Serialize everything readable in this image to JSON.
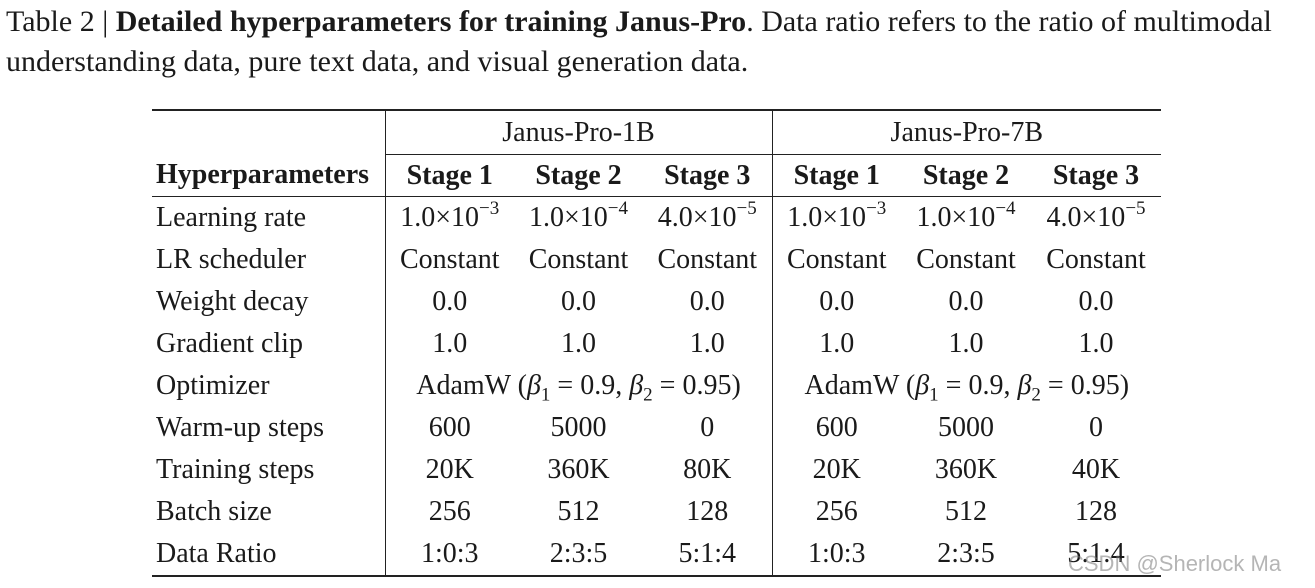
{
  "caption": {
    "prefix": "Table 2 | ",
    "title": "Detailed hyperparameters for training Janus-Pro",
    "text": ". Data ratio refers to the ratio of multimodal understanding data, pure text data, and visual generation data."
  },
  "table": {
    "groups": [
      "Janus-Pro-1B",
      "Janus-Pro-7B"
    ],
    "header": [
      "Hyperparameters",
      "Stage 1",
      "Stage 2",
      "Stage 3",
      "Stage 1",
      "Stage 2",
      "Stage 3"
    ],
    "learning_rate": {
      "label": "Learning rate",
      "values": [
        {
          "mant": "1.0",
          "exp": "−3"
        },
        {
          "mant": "1.0",
          "exp": "−4"
        },
        {
          "mant": "4.0",
          "exp": "−5"
        },
        {
          "mant": "1.0",
          "exp": "−3"
        },
        {
          "mant": "1.0",
          "exp": "−4"
        },
        {
          "mant": "4.0",
          "exp": "−5"
        }
      ]
    },
    "rows": [
      {
        "label": "LR scheduler",
        "values": [
          "Constant",
          "Constant",
          "Constant",
          "Constant",
          "Constant",
          "Constant"
        ]
      },
      {
        "label": "Weight decay",
        "values": [
          "0.0",
          "0.0",
          "0.0",
          "0.0",
          "0.0",
          "0.0"
        ]
      },
      {
        "label": "Gradient clip",
        "values": [
          "1.0",
          "1.0",
          "1.0",
          "1.0",
          "1.0",
          "1.0"
        ]
      }
    ],
    "optimizer": {
      "label": "Optimizer",
      "name": "AdamW",
      "beta1": "0.9",
      "beta2": "0.95"
    },
    "rows2": [
      {
        "label": "Warm-up steps",
        "values": [
          "600",
          "5000",
          "0",
          "600",
          "5000",
          "0"
        ]
      },
      {
        "label": "Training steps",
        "values": [
          "20K",
          "360K",
          "80K",
          "20K",
          "360K",
          "40K"
        ]
      },
      {
        "label": "Batch size",
        "values": [
          "256",
          "512",
          "128",
          "256",
          "512",
          "128"
        ]
      },
      {
        "label": "Data Ratio",
        "values": [
          "1:0:3",
          "2:3:5",
          "5:1:4",
          "1:0:3",
          "2:3:5",
          "5:1:4"
        ]
      }
    ]
  },
  "watermark": "CSDN @Sherlock  Ma"
}
